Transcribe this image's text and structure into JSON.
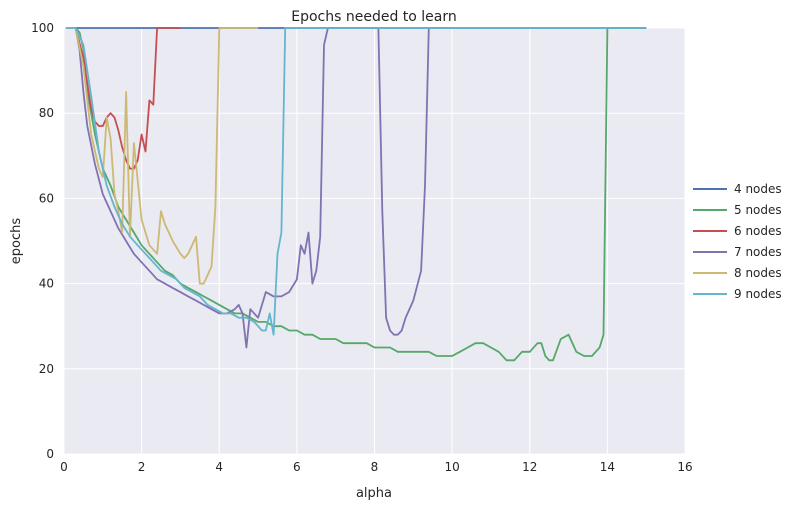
{
  "chart_data": {
    "type": "line",
    "title": "Epochs needed to learn",
    "xlabel": "alpha",
    "ylabel": "epochs",
    "xlim": [
      0,
      16
    ],
    "ylim": [
      0,
      100
    ],
    "xticks": [
      "0",
      "2",
      "4",
      "6",
      "8",
      "10",
      "12",
      "14",
      "16"
    ],
    "yticks": [
      "0",
      "20",
      "40",
      "60",
      "80",
      "100"
    ],
    "grid": true,
    "legend": "right",
    "series": [
      {
        "name": "4 nodes",
        "color": "#4c72b0",
        "points": [
          [
            0.05,
            100
          ],
          [
            15.0,
            100
          ]
        ]
      },
      {
        "name": "5 nodes",
        "color": "#55a868",
        "points": [
          [
            0.05,
            100
          ],
          [
            0.3,
            100
          ],
          [
            0.4,
            99
          ],
          [
            0.5,
            95
          ],
          [
            0.6,
            85
          ],
          [
            0.8,
            75
          ],
          [
            1.0,
            67
          ],
          [
            1.2,
            63
          ],
          [
            1.4,
            58
          ],
          [
            1.6,
            55
          ],
          [
            1.8,
            52
          ],
          [
            2.0,
            49
          ],
          [
            2.2,
            47
          ],
          [
            2.4,
            45
          ],
          [
            2.6,
            43
          ],
          [
            2.8,
            42
          ],
          [
            3.0,
            40
          ],
          [
            3.2,
            39
          ],
          [
            3.4,
            38
          ],
          [
            3.6,
            37
          ],
          [
            3.8,
            36
          ],
          [
            4.0,
            35
          ],
          [
            4.2,
            34
          ],
          [
            4.4,
            33
          ],
          [
            4.6,
            33
          ],
          [
            4.8,
            32
          ],
          [
            5.0,
            31
          ],
          [
            5.2,
            31
          ],
          [
            5.4,
            30
          ],
          [
            5.6,
            30
          ],
          [
            5.8,
            29
          ],
          [
            6.0,
            29
          ],
          [
            6.2,
            28
          ],
          [
            6.4,
            28
          ],
          [
            6.6,
            27
          ],
          [
            7.0,
            27
          ],
          [
            7.2,
            26
          ],
          [
            7.8,
            26
          ],
          [
            8.0,
            25
          ],
          [
            8.4,
            25
          ],
          [
            8.6,
            24
          ],
          [
            9.0,
            24
          ],
          [
            9.4,
            24
          ],
          [
            9.6,
            23
          ],
          [
            10.0,
            23
          ],
          [
            10.2,
            24
          ],
          [
            10.4,
            25
          ],
          [
            10.6,
            26
          ],
          [
            10.8,
            26
          ],
          [
            11.0,
            25
          ],
          [
            11.2,
            24
          ],
          [
            11.4,
            22
          ],
          [
            11.6,
            22
          ],
          [
            11.8,
            24
          ],
          [
            12.0,
            24
          ],
          [
            12.2,
            26
          ],
          [
            12.3,
            26
          ],
          [
            12.4,
            23
          ],
          [
            12.5,
            22
          ],
          [
            12.6,
            22
          ],
          [
            12.8,
            27
          ],
          [
            13.0,
            28
          ],
          [
            13.2,
            24
          ],
          [
            13.4,
            23
          ],
          [
            13.6,
            23
          ],
          [
            13.8,
            25
          ],
          [
            13.9,
            28
          ],
          [
            14.0,
            100
          ],
          [
            15.0,
            100
          ]
        ]
      },
      {
        "name": "6 nodes",
        "color": "#c44e52",
        "points": [
          [
            0.05,
            100
          ],
          [
            0.3,
            100
          ],
          [
            0.5,
            93
          ],
          [
            0.7,
            81
          ],
          [
            0.8,
            78
          ],
          [
            0.9,
            77
          ],
          [
            1.0,
            77
          ],
          [
            1.1,
            79
          ],
          [
            1.2,
            80
          ],
          [
            1.3,
            79
          ],
          [
            1.4,
            76
          ],
          [
            1.5,
            72
          ],
          [
            1.6,
            69
          ],
          [
            1.7,
            67
          ],
          [
            1.8,
            67
          ],
          [
            1.9,
            69
          ],
          [
            2.0,
            75
          ],
          [
            2.1,
            71
          ],
          [
            2.2,
            83
          ],
          [
            2.3,
            82
          ],
          [
            2.4,
            100
          ],
          [
            3.0,
            100
          ]
        ]
      },
      {
        "name": "7 nodes",
        "color": "#8172b2",
        "points": [
          [
            0.05,
            100
          ],
          [
            0.3,
            100
          ],
          [
            0.4,
            95
          ],
          [
            0.5,
            85
          ],
          [
            0.6,
            77
          ],
          [
            0.8,
            68
          ],
          [
            1.0,
            61
          ],
          [
            1.2,
            57
          ],
          [
            1.4,
            53
          ],
          [
            1.6,
            50
          ],
          [
            1.8,
            47
          ],
          [
            2.0,
            45
          ],
          [
            2.2,
            43
          ],
          [
            2.4,
            41
          ],
          [
            2.6,
            40
          ],
          [
            2.8,
            39
          ],
          [
            3.0,
            38
          ],
          [
            3.2,
            37
          ],
          [
            3.4,
            36
          ],
          [
            3.6,
            35
          ],
          [
            3.8,
            34
          ],
          [
            4.0,
            33
          ],
          [
            4.2,
            33
          ],
          [
            4.4,
            34
          ],
          [
            4.5,
            35
          ],
          [
            4.6,
            33
          ],
          [
            4.7,
            25
          ],
          [
            4.8,
            34
          ],
          [
            5.0,
            32
          ],
          [
            5.2,
            38
          ],
          [
            5.4,
            37
          ],
          [
            5.6,
            37
          ],
          [
            5.8,
            38
          ],
          [
            6.0,
            41
          ],
          [
            6.1,
            49
          ],
          [
            6.2,
            47
          ],
          [
            6.3,
            52
          ],
          [
            6.4,
            40
          ],
          [
            6.5,
            43
          ],
          [
            6.6,
            51
          ],
          [
            6.7,
            96
          ],
          [
            6.8,
            100
          ],
          [
            8.0,
            100
          ],
          [
            8.1,
            100
          ],
          [
            8.2,
            57
          ],
          [
            8.3,
            32
          ],
          [
            8.4,
            29
          ],
          [
            8.5,
            28
          ],
          [
            8.6,
            28
          ],
          [
            8.7,
            29
          ],
          [
            8.8,
            32
          ],
          [
            9.0,
            36
          ],
          [
            9.2,
            43
          ],
          [
            9.3,
            63
          ],
          [
            9.4,
            100
          ],
          [
            10.0,
            100
          ]
        ]
      },
      {
        "name": "8 nodes",
        "color": "#ccb974",
        "points": [
          [
            0.05,
            100
          ],
          [
            0.3,
            100
          ],
          [
            0.5,
            91
          ],
          [
            0.7,
            75
          ],
          [
            0.9,
            67
          ],
          [
            1.0,
            65
          ],
          [
            1.1,
            79
          ],
          [
            1.2,
            74
          ],
          [
            1.3,
            61
          ],
          [
            1.4,
            57
          ],
          [
            1.5,
            52
          ],
          [
            1.6,
            85
          ],
          [
            1.7,
            51
          ],
          [
            1.8,
            73
          ],
          [
            2.0,
            55
          ],
          [
            2.2,
            49
          ],
          [
            2.4,
            47
          ],
          [
            2.5,
            57
          ],
          [
            2.6,
            54
          ],
          [
            2.8,
            50
          ],
          [
            3.0,
            47
          ],
          [
            3.1,
            46
          ],
          [
            3.2,
            47
          ],
          [
            3.4,
            51
          ],
          [
            3.5,
            40
          ],
          [
            3.6,
            40
          ],
          [
            3.7,
            42
          ],
          [
            3.8,
            44
          ],
          [
            3.9,
            58
          ],
          [
            4.0,
            100
          ],
          [
            5.0,
            100
          ]
        ]
      },
      {
        "name": "9 nodes",
        "color": "#64b5cd",
        "points": [
          [
            0.05,
            100
          ],
          [
            0.3,
            100
          ],
          [
            0.5,
            96
          ],
          [
            0.7,
            84
          ],
          [
            0.9,
            71
          ],
          [
            1.1,
            63
          ],
          [
            1.3,
            58
          ],
          [
            1.5,
            54
          ],
          [
            1.7,
            51
          ],
          [
            1.9,
            49
          ],
          [
            2.1,
            47
          ],
          [
            2.3,
            45
          ],
          [
            2.5,
            43
          ],
          [
            2.7,
            42
          ],
          [
            2.9,
            41
          ],
          [
            3.1,
            39
          ],
          [
            3.3,
            38
          ],
          [
            3.5,
            37
          ],
          [
            3.7,
            35
          ],
          [
            3.9,
            34
          ],
          [
            4.1,
            33
          ],
          [
            4.3,
            33
          ],
          [
            4.5,
            32
          ],
          [
            4.7,
            32
          ],
          [
            4.9,
            31
          ],
          [
            5.0,
            30
          ],
          [
            5.1,
            29
          ],
          [
            5.2,
            29
          ],
          [
            5.3,
            33
          ],
          [
            5.4,
            28
          ],
          [
            5.5,
            47
          ],
          [
            5.6,
            52
          ],
          [
            5.7,
            100
          ],
          [
            15.0,
            100
          ]
        ]
      }
    ]
  }
}
